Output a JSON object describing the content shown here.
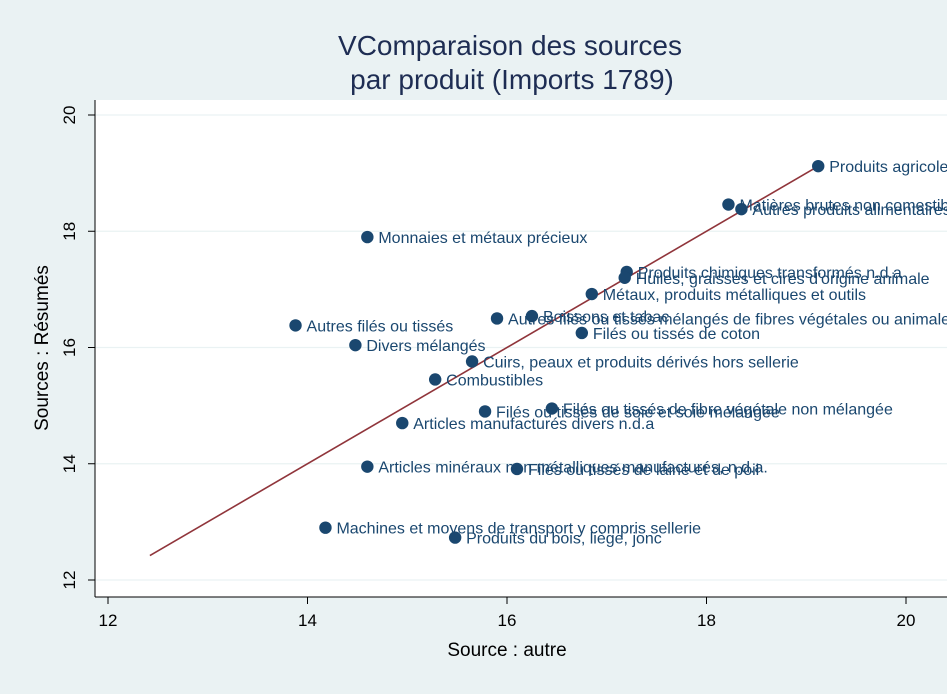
{
  "chart_data": {
    "type": "scatter",
    "title_line1": "VComparaison des sources",
    "title_line2": "par produit (Imports 1789)",
    "xlabel": "Source : autre",
    "ylabel": "Sources : Résumés",
    "xlim": [
      12,
      20
    ],
    "ylim": [
      12,
      20
    ],
    "xticks": [
      "12",
      "14",
      "16",
      "18",
      "20"
    ],
    "yticks": [
      "12",
      "14",
      "16",
      "18",
      "20"
    ],
    "grid": "horizontal",
    "legend": "none",
    "marker_color": "#1a476f",
    "line_color": "#90353b",
    "plot_bg": "#ffffff",
    "fit_line": {
      "x": [
        12.42,
        19.12
      ],
      "y": [
        12.42,
        19.12
      ]
    },
    "points": [
      {
        "x": 19.12,
        "y": 19.12,
        "label": "Produits agricoles"
      },
      {
        "x": 18.22,
        "y": 18.46,
        "label": "Matières brutes non comestibles"
      },
      {
        "x": 18.35,
        "y": 18.38,
        "label": "Autres produits alimentaires"
      },
      {
        "x": 14.6,
        "y": 17.9,
        "label": "Monnaies et métaux précieux"
      },
      {
        "x": 17.2,
        "y": 17.3,
        "label": "Produits chimiques transformés n.d.a"
      },
      {
        "x": 17.18,
        "y": 17.2,
        "label": "Huiles, graisses et cires d'origine animale"
      },
      {
        "x": 16.85,
        "y": 16.92,
        "label": "Métaux, produits métalliques et outils"
      },
      {
        "x": 16.25,
        "y": 16.54,
        "label": "Boissons et tabac"
      },
      {
        "x": 15.9,
        "y": 16.5,
        "label": "Autres filés ou tissés mélangés de fibres végétales ou animales"
      },
      {
        "x": 16.75,
        "y": 16.25,
        "label": "Filés ou tissés de coton"
      },
      {
        "x": 13.88,
        "y": 16.38,
        "label": "Autres filés ou tissés"
      },
      {
        "x": 14.48,
        "y": 16.04,
        "label": "Divers mélangés"
      },
      {
        "x": 15.65,
        "y": 15.76,
        "label": "Cuirs, peaux et produits dérivés hors sellerie"
      },
      {
        "x": 15.28,
        "y": 15.45,
        "label": "Combustibles"
      },
      {
        "x": 16.45,
        "y": 14.95,
        "label": "Filés ou tissés de fibre végétale non mélangée"
      },
      {
        "x": 15.78,
        "y": 14.9,
        "label": "Filés ou tissés de soie et soie mélangée"
      },
      {
        "x": 14.95,
        "y": 14.7,
        "label": "Articles manufacturés divers n.d.a"
      },
      {
        "x": 14.6,
        "y": 13.95,
        "label": "Articles minéraux non métalliques manufacturés, n.d.a."
      },
      {
        "x": 16.1,
        "y": 13.91,
        "label": "Filés ou tissés de laine et de poil"
      },
      {
        "x": 14.18,
        "y": 12.9,
        "label": "Machines et moyens de transport y compris sellerie"
      },
      {
        "x": 15.48,
        "y": 12.73,
        "label": "Produits du bois, liège, jonc"
      }
    ]
  }
}
